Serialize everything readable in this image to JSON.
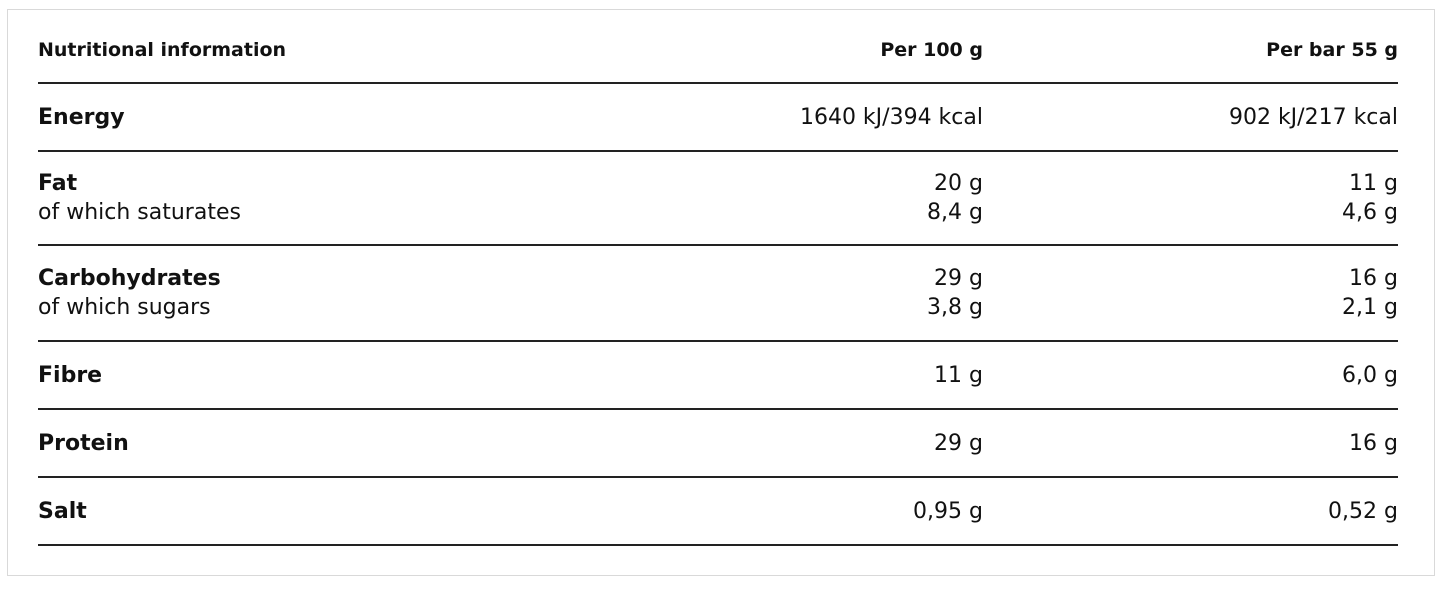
{
  "header": {
    "label": "Nutritional information",
    "col1": "Per 100 g",
    "col2": "Per bar 55 g"
  },
  "rows": [
    {
      "name": "Energy",
      "v1": "1640 kJ/394 kcal",
      "v2": "902 kJ/217 kcal"
    },
    {
      "name": "Fat",
      "v1": "20 g",
      "v2": "11 g",
      "sub": "of which saturates",
      "sv1": "8,4 g",
      "sv2": "4,6 g"
    },
    {
      "name": "Carbohydrates",
      "v1": "29 g",
      "v2": "16 g",
      "sub": "of which sugars",
      "sv1": "3,8 g",
      "sv2": "2,1 g"
    },
    {
      "name": "Fibre",
      "v1": "11 g",
      "v2": "6,0 g"
    },
    {
      "name": "Protein",
      "v1": "29 g",
      "v2": "16 g"
    },
    {
      "name": "Salt",
      "v1": "0,95 g",
      "v2": "0,52 g"
    }
  ]
}
